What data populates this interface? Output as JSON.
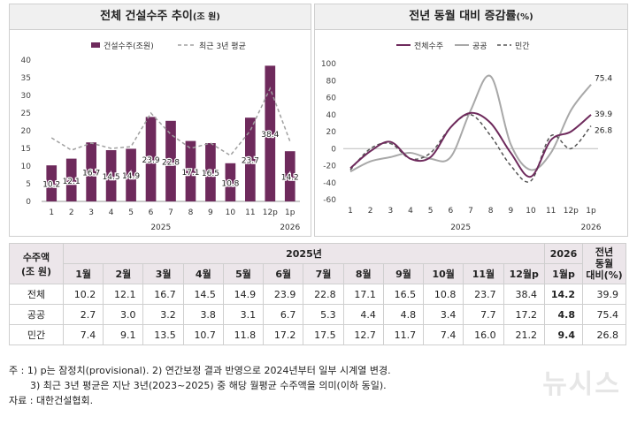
{
  "left_chart": {
    "title": "전체 건설수주 추이",
    "unit": "(조 원)",
    "legend_bar": "건설수주(조원)",
    "legend_line": "최근 3년 평균",
    "colors": {
      "bar": "#6e2a5c",
      "line": "#a0a0a0"
    }
  },
  "right_chart": {
    "title": "전년 동월 대비 증감률",
    "unit": "(%)",
    "legend_total": "전체수주",
    "legend_public": "공공",
    "legend_private": "민간",
    "colors": {
      "total": "#6e2a5c",
      "public": "#a8a8a8",
      "private": "#555555"
    }
  },
  "chart_data": [
    {
      "type": "bar",
      "title": "전체 건설수주 추이(조 원)",
      "categories": [
        "1",
        "2",
        "3",
        "4",
        "5",
        "6",
        "7",
        "8",
        "9",
        "10",
        "11",
        "12p",
        "1p"
      ],
      "year_labels": [
        "2025",
        "2026"
      ],
      "ylim": [
        0,
        40
      ],
      "yticks": [
        0,
        5,
        10,
        15,
        20,
        25,
        30,
        35,
        40
      ],
      "series": [
        {
          "name": "건설수주(조원)",
          "values": [
            10.2,
            12.1,
            16.7,
            14.5,
            14.9,
            23.9,
            22.8,
            17.1,
            16.5,
            10.8,
            23.7,
            38.4,
            14.2
          ]
        },
        {
          "name": "최근 3년 평균",
          "type": "line",
          "values": [
            18,
            14.5,
            16.5,
            15,
            15.5,
            25,
            19,
            15,
            16.5,
            13,
            20,
            32,
            17
          ]
        }
      ],
      "legend": "top"
    },
    {
      "type": "line",
      "title": "전년 동월 대비 증감률(%)",
      "categories": [
        "1",
        "2",
        "3",
        "4",
        "5",
        "6",
        "7",
        "8",
        "9",
        "10",
        "11",
        "12p",
        "1p"
      ],
      "year_labels": [
        "2025",
        "2026"
      ],
      "ylim": [
        -60,
        100
      ],
      "yticks": [
        -60,
        -40,
        -20,
        0,
        20,
        40,
        60,
        80,
        100
      ],
      "series": [
        {
          "name": "전체수주",
          "values": [
            -23,
            -3,
            8,
            -12,
            -10,
            25,
            42,
            30,
            -5,
            -33,
            10,
            20,
            39.9
          ]
        },
        {
          "name": "공공",
          "values": [
            -27,
            -15,
            -10,
            -5,
            -12,
            -10,
            45,
            85,
            5,
            -25,
            -5,
            45,
            75.4
          ]
        },
        {
          "name": "민간",
          "values": [
            -25,
            0,
            6,
            -12,
            -5,
            25,
            40,
            15,
            -20,
            -38,
            15,
            0,
            26.8
          ]
        }
      ],
      "end_labels": [
        "75.4",
        "39.9",
        "26.8"
      ],
      "legend": "top"
    }
  ],
  "table": {
    "corner": "수주액\n(조 원)",
    "year_2025": "2025년",
    "year_2026": "2026",
    "yoy_header": "전년\n동월\n대비(%)",
    "months": [
      "1월",
      "2월",
      "3월",
      "4월",
      "5월",
      "6월",
      "7월",
      "8월",
      "9월",
      "10월",
      "11월",
      "12월p"
    ],
    "month_2026": "1월p",
    "rows": [
      {
        "label": "전체",
        "values": [
          "10.2",
          "12.1",
          "16.7",
          "14.5",
          "14.9",
          "23.9",
          "22.8",
          "17.1",
          "16.5",
          "10.8",
          "23.7",
          "38.4"
        ],
        "latest": "14.2",
        "yoy": "39.9"
      },
      {
        "label": "공공",
        "values": [
          "2.7",
          "3.0",
          "3.2",
          "3.8",
          "3.1",
          "6.7",
          "5.3",
          "4.4",
          "4.8",
          "3.4",
          "7.7",
          "17.2"
        ],
        "latest": "4.8",
        "yoy": "75.4"
      },
      {
        "label": "민간",
        "values": [
          "7.4",
          "9.1",
          "13.5",
          "10.7",
          "11.8",
          "17.2",
          "17.5",
          "12.7",
          "11.7",
          "7.4",
          "16.0",
          "21.2"
        ],
        "latest": "9.4",
        "yoy": "26.8"
      }
    ]
  },
  "notes": {
    "line1": "주 : 1) p는 잠정치(provisional). 2) 연간보정 결과 반영으로 2024년부터 일부 시계열 변경.",
    "line2": "3) 최근 3년 평균은 지난 3년(2023~2025) 중 해당 월평균 수주액을 의미(이하 동일).",
    "line3": "자료 : 대한건설협회."
  },
  "watermark": "뉴시스"
}
